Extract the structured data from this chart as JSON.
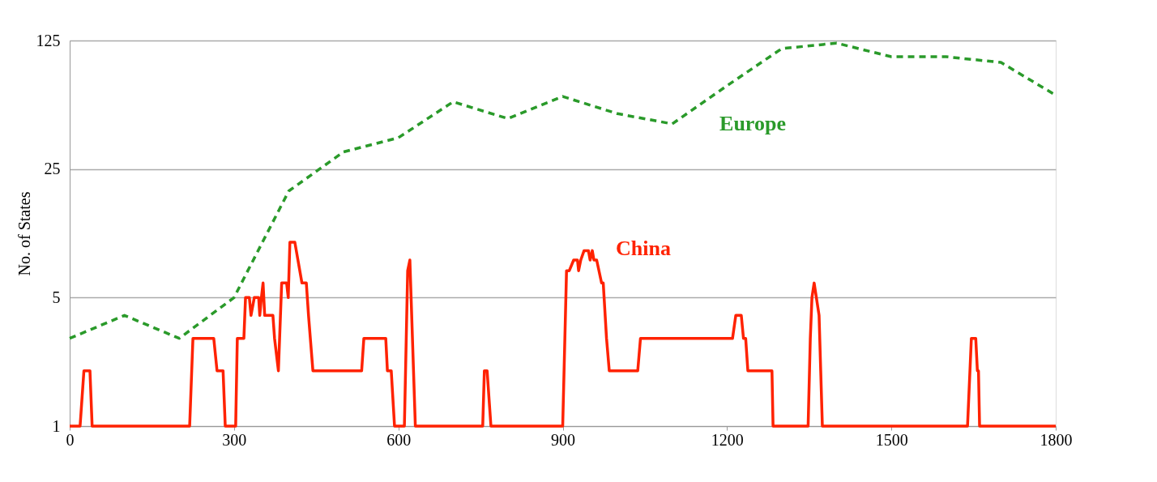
{
  "chart_data": {
    "type": "line",
    "ylabel": "No. of States",
    "log": "y",
    "grid": "y",
    "legend": false,
    "xlim": [
      0,
      1800
    ],
    "xticks": [
      0,
      300,
      600,
      900,
      1200,
      1500,
      1800
    ],
    "ylim": [
      1,
      125
    ],
    "yticks": [
      1,
      5,
      25,
      125
    ],
    "series": [
      {
        "name": "Europe",
        "color": "#2a9a2a",
        "line_style": "dashed",
        "x": [
          0,
          100,
          200,
          300,
          400,
          500,
          600,
          700,
          800,
          900,
          1000,
          1100,
          1200,
          1300,
          1400,
          1500,
          1600,
          1700,
          1800
        ],
        "values": [
          3,
          4,
          3,
          5,
          19,
          31,
          37,
          58,
          47,
          62,
          50,
          44,
          71,
          113,
          121,
          102,
          102,
          95,
          63
        ]
      },
      {
        "name": "China",
        "color": "#ff2200",
        "line_style": "solid",
        "x": [
          0,
          19,
          26,
          37,
          41,
          219,
          225,
          263,
          269,
          280,
          284,
          303,
          306,
          318,
          321,
          328,
          331,
          337,
          345,
          347,
          350,
          353,
          356,
          371,
          374,
          381,
          387,
          396,
          399,
          402,
          411,
          424,
          432,
          436,
          444,
          533,
          537,
          577,
          580,
          587,
          593,
          611,
          617,
          621,
          631,
          754,
          757,
          762,
          769,
          900,
          907,
          912,
          920,
          927,
          929,
          933,
          939,
          947,
          950,
          954,
          957,
          962,
          971,
          974,
          980,
          985,
          1037,
          1042,
          1210,
          1216,
          1226,
          1230,
          1234,
          1238,
          1282,
          1284,
          1348,
          1352,
          1355,
          1359,
          1368,
          1371,
          1374,
          1639,
          1646,
          1654,
          1657,
          1659,
          1661,
          1800
        ],
        "values": [
          1,
          1,
          2,
          2,
          1,
          1,
          3,
          3,
          2,
          2,
          1,
          1,
          3,
          3,
          5,
          5,
          4,
          5,
          5,
          4,
          5,
          6,
          4,
          4,
          3,
          2,
          6,
          6,
          5,
          10,
          10,
          6,
          6,
          4,
          2,
          2,
          3,
          3,
          2,
          2,
          1,
          1,
          7,
          8,
          1,
          1,
          2,
          2,
          1,
          1,
          7,
          7,
          8,
          8,
          7,
          8,
          9,
          9,
          8,
          9,
          8,
          8,
          6,
          6,
          3,
          2,
          2,
          3,
          3,
          4,
          4,
          3,
          3,
          2,
          2,
          1,
          1,
          3,
          5,
          6,
          4,
          2,
          1,
          1,
          3,
          3,
          2,
          2,
          1,
          1
        ]
      }
    ]
  }
}
